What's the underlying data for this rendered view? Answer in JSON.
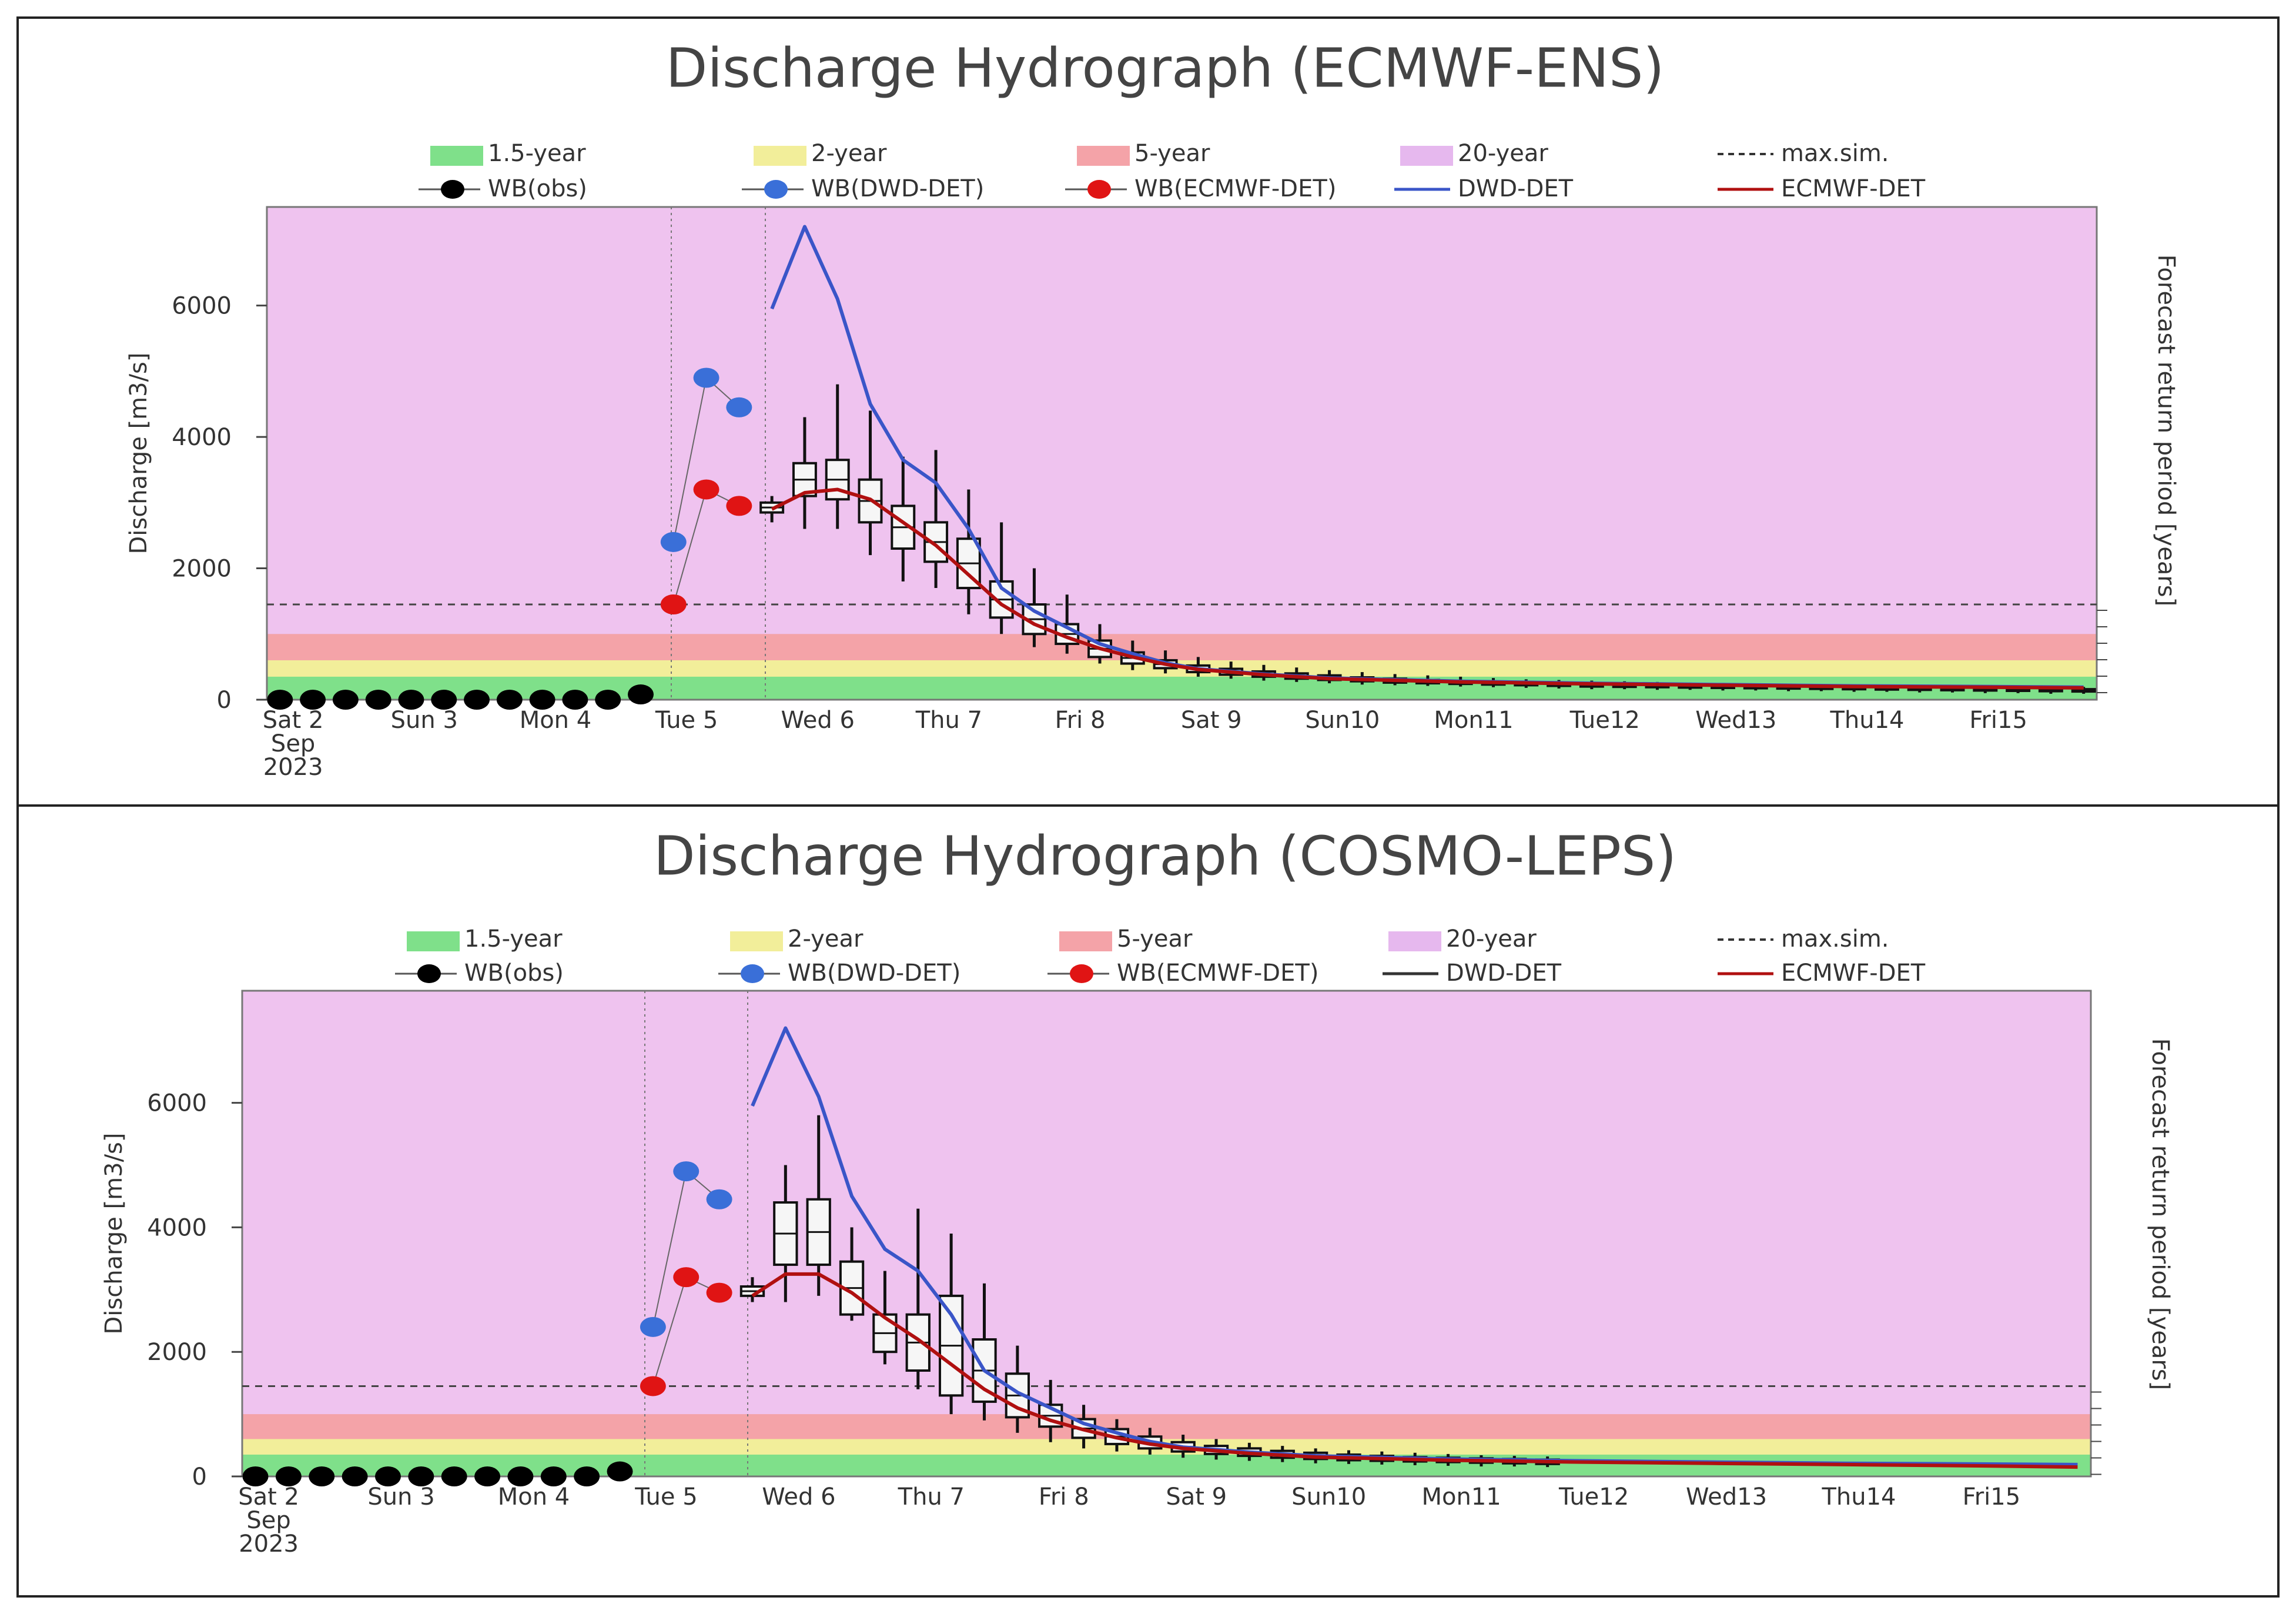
{
  "chart_data": [
    {
      "type": "line",
      "title": "Discharge Hydrograph (ECMWF-ENS)",
      "ylabel": "Discharge [m3/s]",
      "y2label": "Forecast return period [years]",
      "ylim": [
        0,
        7500
      ],
      "yticks": [
        0,
        2000,
        4000,
        6000
      ],
      "categories": [
        "Sat 2\nSep\n2023",
        "Sun 3",
        "Mon 4",
        "Tue 5",
        "Wed 6",
        "Thu 7",
        "Fri 8",
        "Sat 9",
        "Sun10",
        "Mon11",
        "Tue12",
        "Wed13",
        "Thu14",
        "Fri15"
      ],
      "thresholds": [
        {
          "name": "1.5-year",
          "value": 350,
          "color": "#7fe08a"
        },
        {
          "name": "2-year",
          "value": 600,
          "color": "#f2ee9a"
        },
        {
          "name": "5-year",
          "value": 1000,
          "color": "#f4a3a8"
        },
        {
          "name": "20-year",
          "value": 7500,
          "color": "#efc3ef"
        }
      ],
      "max_sim": 1450,
      "legend": [
        {
          "label": "1.5-year",
          "kind": "swatch",
          "color": "#7fe08a"
        },
        {
          "label": "2-year",
          "kind": "swatch",
          "color": "#f2ee9a"
        },
        {
          "label": "5-year",
          "kind": "swatch",
          "color": "#f4a3a8"
        },
        {
          "label": "20-year",
          "kind": "swatch",
          "color": "#e6b8ee"
        },
        {
          "label": "max.sim.",
          "kind": "dash",
          "color": "#333333"
        },
        {
          "label": "WB(obs)",
          "kind": "dot",
          "color": "#000000"
        },
        {
          "label": "WB(DWD-DET)",
          "kind": "dot",
          "color": "#3a6fd8"
        },
        {
          "label": "WB(ECMWF-DET)",
          "kind": "dot",
          "color": "#e01414"
        },
        {
          "label": "DWD-DET",
          "kind": "line",
          "color": "#3a55c8"
        },
        {
          "label": "ECMWF-DET",
          "kind": "line",
          "color": "#b01010"
        }
      ],
      "series": [
        {
          "name": "WB(obs)",
          "kind": "dots",
          "color": "#000000",
          "x": [
            0,
            0.25,
            0.5,
            0.75,
            1.0,
            1.25,
            1.5,
            1.75,
            2.0,
            2.25,
            2.5,
            2.75
          ],
          "y": [
            0,
            0,
            0,
            0,
            0,
            0,
            0,
            0,
            0,
            0,
            0,
            80
          ]
        },
        {
          "name": "WB(DWD-DET)",
          "kind": "dots",
          "color": "#3a6fd8",
          "x": [
            3.0,
            3.25,
            3.5
          ],
          "y": [
            2400,
            4900,
            4450
          ]
        },
        {
          "name": "WB(ECMWF-DET)",
          "kind": "dots",
          "color": "#e01414",
          "x": [
            3.0,
            3.25,
            3.5
          ],
          "y": [
            1450,
            3200,
            2950
          ]
        },
        {
          "name": "DWD-DET",
          "kind": "line",
          "color": "#3a55c8",
          "x": [
            3.75,
            4.0,
            4.25,
            4.5,
            4.75,
            5.0,
            5.25,
            5.5,
            5.75,
            6.0,
            6.25,
            6.5,
            6.75,
            7.0,
            7.5,
            8.0,
            9.0,
            10.0,
            11.0,
            12.0,
            13.0,
            13.75
          ],
          "y": [
            5950,
            7200,
            6100,
            4500,
            3650,
            3300,
            2600,
            1700,
            1350,
            1100,
            850,
            700,
            560,
            470,
            390,
            330,
            280,
            250,
            230,
            210,
            200,
            190
          ]
        },
        {
          "name": "ECMWF-DET",
          "kind": "line",
          "color": "#b01010",
          "x": [
            3.75,
            4.0,
            4.25,
            4.5,
            4.75,
            5.0,
            5.25,
            5.5,
            5.75,
            6.0,
            6.25,
            6.5,
            6.75,
            7.0,
            7.5,
            8.0,
            9.0,
            10.0,
            11.0,
            12.0,
            13.0,
            13.75
          ],
          "y": [
            2900,
            3150,
            3200,
            3050,
            2700,
            2350,
            1900,
            1450,
            1150,
            950,
            780,
            650,
            540,
            460,
            380,
            320,
            270,
            240,
            220,
            200,
            190,
            180
          ]
        }
      ],
      "boxes": {
        "x": [
          3.75,
          4.0,
          4.25,
          4.5,
          4.75,
          5.0,
          5.25,
          5.5,
          5.75,
          6.0,
          6.25,
          6.5,
          6.75,
          7.0,
          7.25,
          7.5,
          7.75,
          8.0,
          8.25,
          8.5,
          8.75,
          9.0,
          9.25,
          9.5,
          9.75,
          10.0,
          10.25,
          10.5,
          10.75,
          11.0,
          11.25,
          11.5,
          11.75,
          12.0,
          12.25,
          12.5,
          12.75,
          13.0,
          13.25,
          13.5,
          13.75
        ],
        "min": [
          2700,
          2600,
          2600,
          2200,
          1800,
          1700,
          1300,
          1000,
          800,
          700,
          550,
          450,
          400,
          350,
          320,
          290,
          270,
          250,
          230,
          220,
          210,
          200,
          190,
          180,
          170,
          160,
          160,
          150,
          150,
          140,
          140,
          130,
          130,
          120,
          120,
          110,
          110,
          100,
          100,
          90,
          90
        ],
        "q1": [
          2850,
          3100,
          3050,
          2700,
          2300,
          2100,
          1700,
          1250,
          1000,
          850,
          650,
          550,
          480,
          420,
          380,
          350,
          320,
          300,
          280,
          260,
          250,
          240,
          230,
          220,
          210,
          200,
          195,
          190,
          185,
          180,
          175,
          170,
          165,
          160,
          155,
          150,
          145,
          140,
          135,
          130,
          125
        ],
        "q3": [
          3000,
          3600,
          3650,
          3350,
          2950,
          2700,
          2450,
          1800,
          1450,
          1150,
          900,
          720,
          600,
          520,
          470,
          430,
          400,
          370,
          340,
          320,
          300,
          285,
          270,
          260,
          250,
          240,
          235,
          230,
          220,
          215,
          210,
          205,
          200,
          195,
          190,
          185,
          180,
          175,
          170,
          165,
          160
        ],
        "max": [
          3100,
          4300,
          4800,
          4400,
          3700,
          3800,
          3200,
          2700,
          2000,
          1600,
          1150,
          900,
          750,
          650,
          580,
          530,
          490,
          450,
          420,
          390,
          370,
          350,
          330,
          310,
          300,
          290,
          280,
          270,
          260,
          250,
          245,
          240,
          235,
          230,
          225,
          220,
          215,
          210,
          205,
          200,
          195
        ]
      }
    },
    {
      "type": "line",
      "title": "Discharge Hydrograph (COSMO-LEPS)",
      "ylabel": "Discharge [m3/s]",
      "y2label": "Forecast return period [years]",
      "ylim": [
        0,
        7800
      ],
      "yticks": [
        0,
        2000,
        4000,
        6000
      ],
      "categories": [
        "Sat 2\nSep\n2023",
        "Sun 3",
        "Mon 4",
        "Tue 5",
        "Wed 6",
        "Thu 7",
        "Fri 8",
        "Sat 9",
        "Sun10",
        "Mon11",
        "Tue12",
        "Wed13",
        "Thu14",
        "Fri15"
      ],
      "thresholds": [
        {
          "name": "1.5-year",
          "value": 350,
          "color": "#7fe08a"
        },
        {
          "name": "2-year",
          "value": 600,
          "color": "#f2ee9a"
        },
        {
          "name": "5-year",
          "value": 1000,
          "color": "#f4a3a8"
        },
        {
          "name": "20-year",
          "value": 7800,
          "color": "#efc3ef"
        }
      ],
      "max_sim": 1450,
      "legend": [
        {
          "label": "1.5-year",
          "kind": "swatch",
          "color": "#7fe08a"
        },
        {
          "label": "2-year",
          "kind": "swatch",
          "color": "#f2ee9a"
        },
        {
          "label": "5-year",
          "kind": "swatch",
          "color": "#f4a3a8"
        },
        {
          "label": "20-year",
          "kind": "swatch",
          "color": "#e6b8ee"
        },
        {
          "label": "max.sim.",
          "kind": "dash",
          "color": "#333333"
        },
        {
          "label": "WB(obs)",
          "kind": "dot",
          "color": "#000000"
        },
        {
          "label": "WB(DWD-DET)",
          "kind": "dot",
          "color": "#3a6fd8"
        },
        {
          "label": "WB(ECMWF-DET)",
          "kind": "dot",
          "color": "#e01414"
        },
        {
          "label": "DWD-DET",
          "kind": "line",
          "color": "#333333"
        },
        {
          "label": "ECMWF-DET",
          "kind": "line",
          "color": "#b01010"
        }
      ],
      "series": [
        {
          "name": "WB(obs)",
          "kind": "dots",
          "color": "#000000",
          "x": [
            0,
            0.25,
            0.5,
            0.75,
            1.0,
            1.25,
            1.5,
            1.75,
            2.0,
            2.25,
            2.5,
            2.75
          ],
          "y": [
            0,
            0,
            0,
            0,
            0,
            0,
            0,
            0,
            0,
            0,
            0,
            80
          ]
        },
        {
          "name": "WB(DWD-DET)",
          "kind": "dots",
          "color": "#3a6fd8",
          "x": [
            3.0,
            3.25,
            3.5
          ],
          "y": [
            2400,
            4900,
            4450
          ]
        },
        {
          "name": "WB(ECMWF-DET)",
          "kind": "dots",
          "color": "#e01414",
          "x": [
            3.0,
            3.25,
            3.5
          ],
          "y": [
            1450,
            3200,
            2950
          ]
        },
        {
          "name": "DWD-DET",
          "kind": "line",
          "color": "#3a55c8",
          "x": [
            3.75,
            4.0,
            4.25,
            4.5,
            4.75,
            5.0,
            5.25,
            5.5,
            5.75,
            6.0,
            6.25,
            6.5,
            6.75,
            7.0,
            7.5,
            8.0,
            9.0,
            10.0,
            11.0,
            12.0,
            13.0,
            13.75
          ],
          "y": [
            5950,
            7200,
            6100,
            4500,
            3650,
            3300,
            2600,
            1700,
            1350,
            1100,
            850,
            700,
            560,
            470,
            390,
            330,
            280,
            250,
            230,
            210,
            200,
            190
          ]
        },
        {
          "name": "ECMWF-DET",
          "kind": "line",
          "color": "#b01010",
          "x": [
            3.75,
            4.0,
            4.25,
            4.5,
            4.75,
            5.0,
            5.25,
            5.5,
            5.75,
            6.0,
            6.25,
            6.5,
            6.75,
            7.0,
            7.5,
            8.0,
            9.0,
            10.0,
            11.0,
            12.0,
            13.0,
            13.75
          ],
          "y": [
            2900,
            3250,
            3250,
            2950,
            2550,
            2200,
            1800,
            1400,
            1100,
            900,
            750,
            620,
            520,
            450,
            370,
            310,
            260,
            230,
            210,
            190,
            170,
            150
          ]
        }
      ],
      "boxes": {
        "x": [
          3.75,
          4.0,
          4.25,
          4.5,
          4.75,
          5.0,
          5.25,
          5.5,
          5.75,
          6.0,
          6.25,
          6.5,
          6.75,
          7.0,
          7.25,
          7.5,
          7.75,
          8.0,
          8.25,
          8.5,
          8.75,
          9.0,
          9.25,
          9.5,
          9.75
        ],
        "min": [
          2800,
          2800,
          2900,
          2500,
          1800,
          1400,
          1000,
          900,
          700,
          550,
          450,
          400,
          350,
          300,
          270,
          250,
          230,
          210,
          200,
          190,
          180,
          170,
          160,
          160,
          150
        ],
        "q1": [
          2900,
          3400,
          3400,
          2600,
          2000,
          1700,
          1300,
          1200,
          950,
          800,
          620,
          520,
          450,
          400,
          360,
          330,
          300,
          280,
          260,
          250,
          240,
          230,
          220,
          210,
          200
        ],
        "q3": [
          3050,
          4400,
          4450,
          3450,
          2600,
          2600,
          2900,
          2200,
          1650,
          1150,
          920,
          760,
          640,
          550,
          490,
          450,
          410,
          380,
          350,
          330,
          310,
          300,
          290,
          280,
          270
        ],
        "max": [
          3200,
          5000,
          5800,
          4000,
          3300,
          4300,
          3900,
          3100,
          2100,
          1550,
          1150,
          920,
          780,
          670,
          600,
          540,
          490,
          450,
          420,
          400,
          380,
          360,
          340,
          330,
          320
        ]
      }
    }
  ]
}
